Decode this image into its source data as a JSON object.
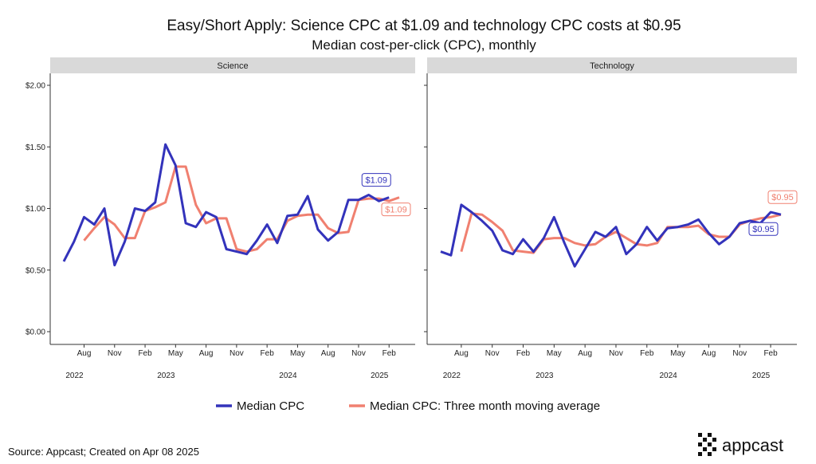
{
  "title": "Easy/Short Apply: Science CPC at $1.09 and technology CPC costs at $0.95",
  "subtitle": "Median cost-per-click (CPC), monthly",
  "source": "Source: Appcast; Created on Apr 08 2025",
  "logo_text": "appcast",
  "colors": {
    "median": "#3333bb",
    "moving_avg": "#f08070",
    "strip_bg": "#d9d9d9"
  },
  "chart_data": {
    "type": "line",
    "y_range": [
      0,
      2
    ],
    "y_ticks": [
      0,
      0.5,
      1,
      1.5,
      2
    ],
    "y_tick_labels": [
      "$0.00",
      "$0.50",
      "$1.00",
      "$1.50",
      "$2.00"
    ],
    "x_range": [
      "2022-06",
      "2025-03"
    ],
    "x_tick_months": [
      "2022-08",
      "2022-11",
      "2023-02",
      "2023-05",
      "2023-08",
      "2023-11",
      "2024-02",
      "2024-05",
      "2024-08",
      "2024-11",
      "2025-02"
    ],
    "x_tick_labels": [
      "Aug",
      "Nov",
      "Feb",
      "May",
      "Aug",
      "Nov",
      "Feb",
      "May",
      "Aug",
      "Nov",
      "Feb"
    ],
    "year_labels": [
      {
        "label": "2022",
        "month": "2022-08"
      },
      {
        "label": "2023",
        "month": "2023-05"
      },
      {
        "label": "2024",
        "month": "2024-05"
      },
      {
        "label": "2025",
        "month": "2025-02"
      }
    ],
    "legend": [
      {
        "key": "median",
        "label": "Median CPC"
      },
      {
        "key": "moving_avg",
        "label": "Median CPC: Three month moving average"
      }
    ],
    "legend_position": "bottom",
    "grid": false,
    "panels": [
      {
        "name": "Science",
        "months": [
          "2022-06",
          "2022-07",
          "2022-08",
          "2022-09",
          "2022-10",
          "2022-11",
          "2022-12",
          "2023-01",
          "2023-02",
          "2023-03",
          "2023-04",
          "2023-05",
          "2023-06",
          "2023-07",
          "2023-08",
          "2023-09",
          "2023-10",
          "2023-11",
          "2023-12",
          "2024-01",
          "2024-02",
          "2024-03",
          "2024-04",
          "2024-05",
          "2024-06",
          "2024-07",
          "2024-08",
          "2024-09",
          "2024-10",
          "2024-11",
          "2024-12",
          "2025-01",
          "2025-02",
          "2025-03"
        ],
        "median": [
          0.57,
          0.73,
          0.93,
          0.87,
          1.0,
          0.54,
          0.73,
          1.0,
          0.98,
          1.05,
          1.52,
          1.35,
          0.88,
          0.85,
          0.97,
          0.93,
          0.67,
          0.65,
          0.63,
          0.74,
          0.87,
          0.72,
          0.94,
          0.95,
          1.1,
          0.83,
          0.74,
          0.81,
          1.07,
          1.07,
          1.11,
          1.06,
          1.09,
          null
        ],
        "moving_avg": [
          null,
          null,
          0.74,
          0.84,
          0.93,
          0.87,
          0.76,
          0.76,
          0.98,
          1.01,
          1.05,
          1.34,
          1.34,
          1.03,
          0.88,
          0.92,
          0.92,
          0.67,
          0.65,
          0.67,
          0.75,
          0.75,
          0.9,
          0.94,
          0.95,
          0.95,
          0.84,
          0.8,
          0.81,
          1.07,
          1.08,
          1.08,
          1.06,
          1.09
        ],
        "end_labels": {
          "median": "$1.09",
          "moving_avg": "$1.09"
        }
      },
      {
        "name": "Technology",
        "months": [
          "2022-06",
          "2022-07",
          "2022-08",
          "2022-09",
          "2022-10",
          "2022-11",
          "2022-12",
          "2023-01",
          "2023-02",
          "2023-03",
          "2023-04",
          "2023-05",
          "2023-06",
          "2023-07",
          "2023-08",
          "2023-09",
          "2023-10",
          "2023-11",
          "2023-12",
          "2024-01",
          "2024-02",
          "2024-03",
          "2024-04",
          "2024-05",
          "2024-06",
          "2024-07",
          "2024-08",
          "2024-09",
          "2024-10",
          "2024-11",
          "2024-12",
          "2025-01",
          "2025-02",
          "2025-03"
        ],
        "median": [
          0.65,
          0.62,
          1.03,
          0.97,
          0.9,
          0.82,
          0.66,
          0.63,
          0.75,
          0.65,
          0.76,
          0.93,
          0.72,
          0.53,
          0.67,
          0.81,
          0.77,
          0.85,
          0.63,
          0.71,
          0.85,
          0.74,
          0.84,
          0.85,
          0.87,
          0.91,
          0.8,
          0.71,
          0.77,
          0.88,
          0.9,
          0.88,
          0.97,
          0.95
        ],
        "moving_avg": [
          null,
          null,
          0.65,
          0.96,
          0.95,
          0.89,
          0.82,
          0.66,
          0.65,
          0.64,
          0.75,
          0.76,
          0.76,
          0.72,
          0.7,
          0.71,
          0.77,
          0.81,
          0.76,
          0.71,
          0.7,
          0.72,
          0.85,
          0.85,
          0.85,
          0.86,
          0.79,
          0.77,
          0.77,
          0.87,
          0.9,
          0.92,
          0.93,
          0.95
        ],
        "end_labels": {
          "median": "$0.95",
          "moving_avg": "$0.95"
        }
      }
    ]
  }
}
